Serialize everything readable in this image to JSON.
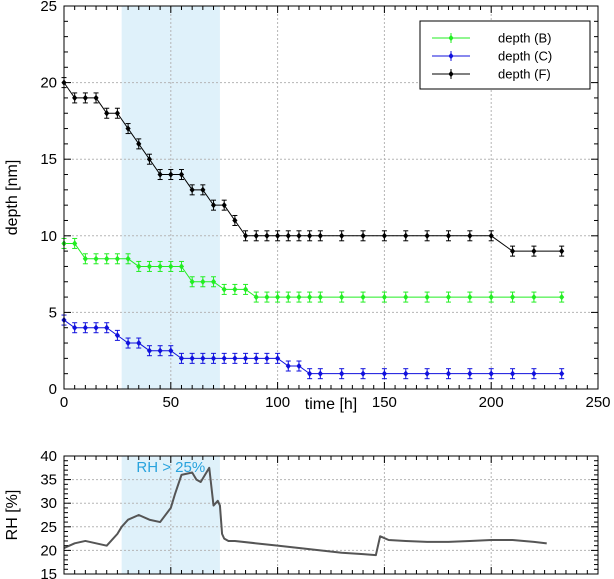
{
  "chart_data": [
    {
      "type": "line",
      "xlabel": "time [h]",
      "ylabel": "depth [nm]",
      "xlim": [
        0,
        250
      ],
      "ylim": [
        0,
        25
      ],
      "xticks": [
        0,
        50,
        100,
        150,
        200,
        250
      ],
      "yticks": [
        0,
        5,
        10,
        15,
        20,
        25
      ],
      "grid": true,
      "legend_position": "top-right",
      "shaded_region": {
        "x_start": 27,
        "x_end": 73,
        "color": "#dff1fa"
      },
      "series": [
        {
          "name": "depth (B)",
          "color": "#22ee22",
          "x": [
            0,
            5,
            10,
            15,
            20,
            25,
            30,
            35,
            40,
            45,
            50,
            55,
            60,
            65,
            70,
            75,
            80,
            85,
            90,
            95,
            100,
            105,
            110,
            115,
            120,
            130,
            140,
            150,
            160,
            170,
            180,
            190,
            200,
            210,
            220,
            233
          ],
          "y": [
            9.5,
            9.5,
            8.5,
            8.5,
            8.5,
            8.5,
            8.5,
            8.0,
            8.0,
            8.0,
            8.0,
            8.0,
            7.0,
            7.0,
            7.0,
            6.5,
            6.5,
            6.5,
            6.0,
            6.0,
            6.0,
            6.0,
            6.0,
            6.0,
            6.0,
            6.0,
            6.0,
            6.0,
            6.0,
            6.0,
            6.0,
            6.0,
            6.0,
            6.0,
            6.0,
            6.0
          ]
        },
        {
          "name": "depth (C)",
          "color": "#1111dd",
          "x": [
            0,
            5,
            10,
            15,
            20,
            25,
            30,
            35,
            40,
            45,
            50,
            55,
            60,
            65,
            70,
            75,
            80,
            85,
            90,
            95,
            100,
            105,
            110,
            115,
            120,
            130,
            140,
            150,
            160,
            170,
            180,
            190,
            200,
            210,
            220,
            233
          ],
          "y": [
            4.5,
            4.0,
            4.0,
            4.0,
            4.0,
            3.5,
            3.0,
            3.0,
            2.5,
            2.5,
            2.5,
            2.0,
            2.0,
            2.0,
            2.0,
            2.0,
            2.0,
            2.0,
            2.0,
            2.0,
            2.0,
            1.5,
            1.5,
            1.0,
            1.0,
            1.0,
            1.0,
            1.0,
            1.0,
            1.0,
            1.0,
            1.0,
            1.0,
            1.0,
            1.0,
            1.0
          ]
        },
        {
          "name": "depth (F)",
          "color": "#000000",
          "x": [
            0,
            5,
            10,
            15,
            20,
            25,
            30,
            35,
            40,
            45,
            50,
            55,
            60,
            65,
            70,
            75,
            80,
            85,
            90,
            95,
            100,
            105,
            110,
            115,
            120,
            130,
            140,
            150,
            160,
            170,
            180,
            190,
            200,
            210,
            220,
            233
          ],
          "y": [
            20,
            19,
            19,
            19,
            18,
            18,
            17,
            16,
            15,
            14,
            14,
            14,
            13,
            13,
            12,
            12,
            11,
            10,
            10,
            10,
            10,
            10,
            10,
            10,
            10,
            10,
            10,
            10,
            10,
            10,
            10,
            10,
            10,
            9,
            9,
            9
          ]
        }
      ]
    },
    {
      "type": "line",
      "ylabel": "RH [%]",
      "xlim": [
        0,
        250
      ],
      "ylim": [
        15,
        40
      ],
      "yticks": [
        15,
        20,
        25,
        30,
        35,
        40
      ],
      "grid": true,
      "annotation": "RH > 25%",
      "annotation_color": "#29a3dd",
      "shaded_region": {
        "x_start": 27,
        "x_end": 73,
        "color": "#dff1fa"
      },
      "series": [
        {
          "color": "#555555",
          "x": [
            0,
            5,
            10,
            15,
            20,
            25,
            27,
            30,
            35,
            40,
            45,
            50,
            52,
            55,
            60,
            62,
            64,
            66,
            68,
            70,
            72,
            73,
            74,
            75,
            77,
            80,
            90,
            100,
            110,
            120,
            130,
            140,
            146,
            147,
            148,
            152,
            160,
            170,
            180,
            190,
            200,
            210,
            220,
            226
          ],
          "y": [
            20.5,
            21.5,
            22,
            21.5,
            21,
            23.5,
            25,
            26.5,
            27.5,
            26.5,
            26,
            29,
            32,
            36,
            36.5,
            35,
            34.5,
            36,
            37.5,
            29.5,
            30.5,
            29.5,
            23.5,
            22.5,
            22,
            22,
            21.5,
            21,
            20.5,
            20,
            19.5,
            19.2,
            19,
            21,
            23,
            22.2,
            22,
            21.8,
            21.8,
            22,
            22.2,
            22.2,
            21.8,
            21.5
          ]
        }
      ]
    }
  ]
}
